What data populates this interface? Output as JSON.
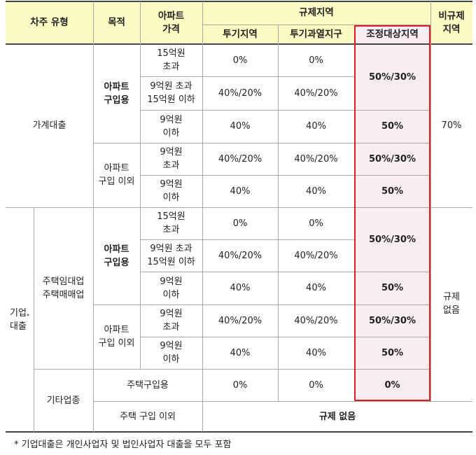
{
  "header": {
    "borrower_type": "차주 유형",
    "purpose": "목적",
    "apt_price": "아파트\n가격",
    "regulated": "규제지역",
    "speculative": "투기지역",
    "overheated": "투기과열지구",
    "adjusted": "조정대상지역",
    "non_regulated": "비규제\n지역"
  },
  "household": {
    "label": "가계대출",
    "purchase_label": "아파트\n구입용",
    "other_label": "아파트\n구입 이외",
    "price_over15": "15억원\n초과",
    "price_9to15": "9억원 초과\n15억원 이하",
    "price_under9": "9억원\n이하",
    "price_over9": "9억원\n초과",
    "r1": {
      "spec": "0%",
      "over": "0%"
    },
    "r2": {
      "spec": "40%/20%",
      "over": "40%/20%"
    },
    "r3": {
      "spec": "40%",
      "over": "40%",
      "adj": "50%"
    },
    "r12_adj": "50%/30%",
    "r4": {
      "spec": "40%/20%",
      "over": "40%/20%",
      "adj": "50%/30%"
    },
    "r5": {
      "spec": "40%",
      "over": "40%",
      "adj": "50%"
    },
    "nonreg": "70%"
  },
  "corporate": {
    "label": "기업\n대출",
    "star": "*",
    "rental_label": "주택임대업\n주택매매업",
    "purchase_label": "아파트\n구입용",
    "other_label": "아파트\n구입 이외",
    "price_over15": "15억원\n초과",
    "price_9to15": "9억원 초과\n15억원 이하",
    "price_under9": "9억원\n이하",
    "price_over9": "9억원\n초과",
    "r1": {
      "spec": "0%",
      "over": "0%"
    },
    "r2": {
      "spec": "40%/20%",
      "over": "40%/20%"
    },
    "r12_adj": "50%/30%",
    "r3": {
      "spec": "40%",
      "over": "40%",
      "adj": "50%"
    },
    "r4": {
      "spec": "40%/20%",
      "over": "40%/20%",
      "adj": "50%/30%"
    },
    "r5": {
      "spec": "40%",
      "over": "40%",
      "adj": "50%"
    },
    "nonreg": "규제\n없음",
    "other_industry_label": "기타업종",
    "housing_purchase": "주택구입용",
    "hp": {
      "spec": "0%",
      "over": "0%",
      "adj": "0%"
    },
    "non_housing": "주택 구입 이외",
    "no_regulation": "규제 없음"
  },
  "footnote": "* 기업대출은 개인사업자 및 법인사업자 대출을 모두 포함"
}
